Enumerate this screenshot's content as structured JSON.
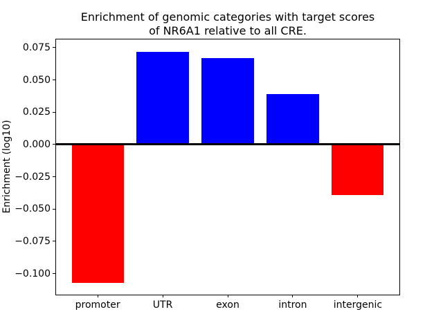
{
  "chart": {
    "title_line1": "Enrichment of genomic categories with target scores",
    "title_line2": "of NR6A1 relative to all CRE.",
    "ylabel": "Enrichment (log10)"
  },
  "chart_data": {
    "type": "bar",
    "title": "Enrichment of genomic categories with target scores\nof NR6A1 relative to all CRE.",
    "xlabel": "",
    "ylabel": "Enrichment (log10)",
    "categories": [
      "promoter",
      "UTR",
      "exon",
      "intron",
      "intergenic"
    ],
    "values": [
      -0.107,
      0.072,
      0.067,
      0.039,
      -0.039
    ],
    "bar_colors": [
      "#ff0000",
      "#0000ff",
      "#0000ff",
      "#0000ff",
      "#ff0000"
    ],
    "positive_color": "#0000ff",
    "negative_color": "#ff0000",
    "yticks": [
      0.075,
      0.05,
      0.025,
      0.0,
      -0.025,
      -0.05,
      -0.075,
      -0.1
    ],
    "ytick_labels": [
      "0.075",
      "0.050",
      "0.025",
      "0.000",
      "−0.025",
      "−0.050",
      "−0.075",
      "−0.100"
    ],
    "ylim": [
      -0.1163,
      0.0814
    ],
    "xlim": [
      -0.64,
      4.64
    ],
    "bar_width": 0.8,
    "zero_line": true,
    "grid": false,
    "legend": null
  }
}
